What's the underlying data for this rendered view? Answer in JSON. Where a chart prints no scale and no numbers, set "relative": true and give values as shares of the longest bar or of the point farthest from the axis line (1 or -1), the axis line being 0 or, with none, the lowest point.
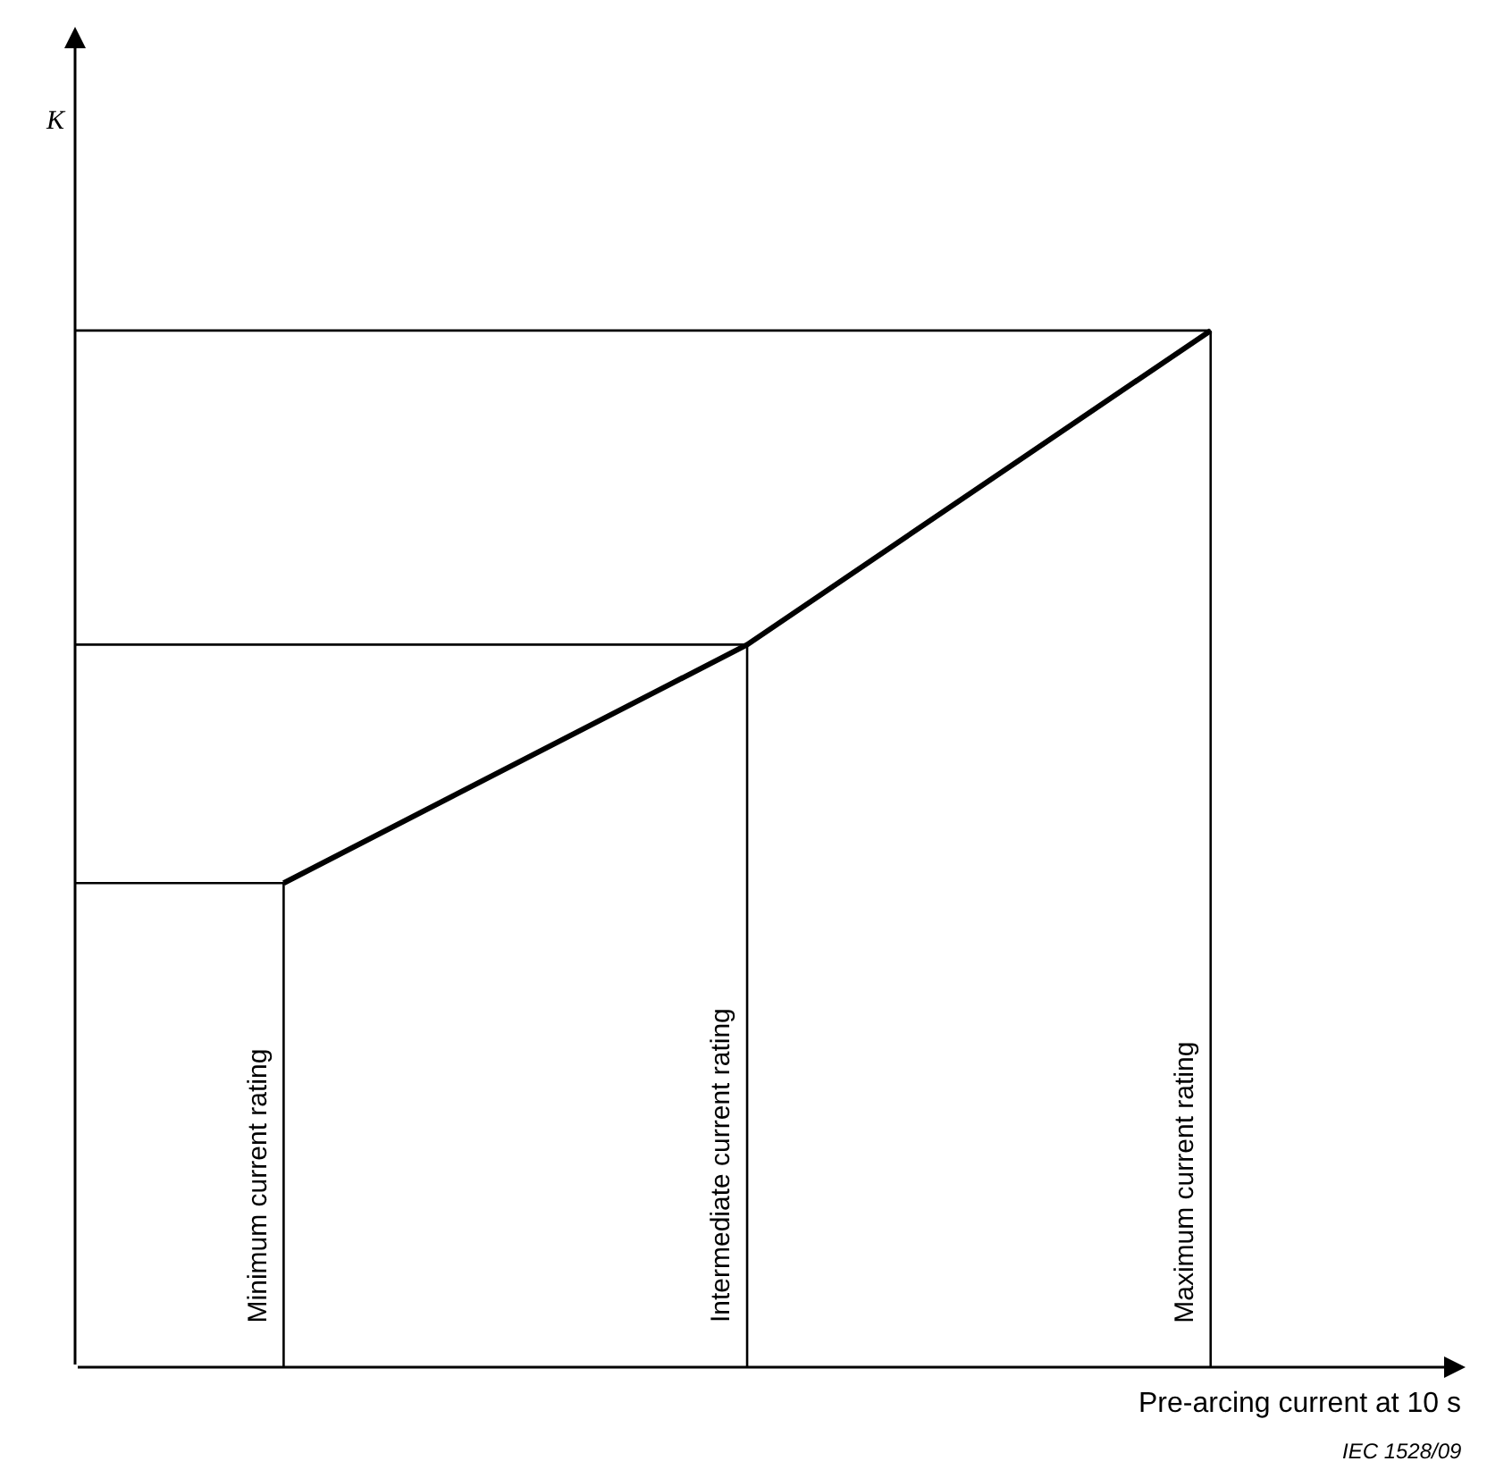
{
  "chart_data": {
    "type": "line",
    "relative": true,
    "xlabel": "Pre-arcing current at 10 s",
    "categories": [
      "Minimum current rating",
      "Intermediate current rating",
      "Maximum current rating"
    ],
    "series": [
      {
        "color": "#000000",
        "values": [
          0.467,
          0.697,
          1
        ]
      }
    ],
    "marker": "none",
    "line_style": "solid",
    "ref_lines": [
      {
        "axis": "x",
        "value": "Minimum current rating",
        "color": "#000000"
      },
      {
        "axis": "x",
        "value": "Intermediate current rating",
        "color": "#000000"
      },
      {
        "axis": "x",
        "value": "Maximum current rating",
        "color": "#000000"
      },
      {
        "axis": "y",
        "value": 0.467,
        "color": "#000000"
      },
      {
        "axis": "y",
        "value": 0.697,
        "color": "#000000"
      },
      {
        "axis": "y",
        "value": 1,
        "color": "#000000"
      }
    ],
    "annotations": [
      "K",
      "IEC 1528/09"
    ]
  }
}
